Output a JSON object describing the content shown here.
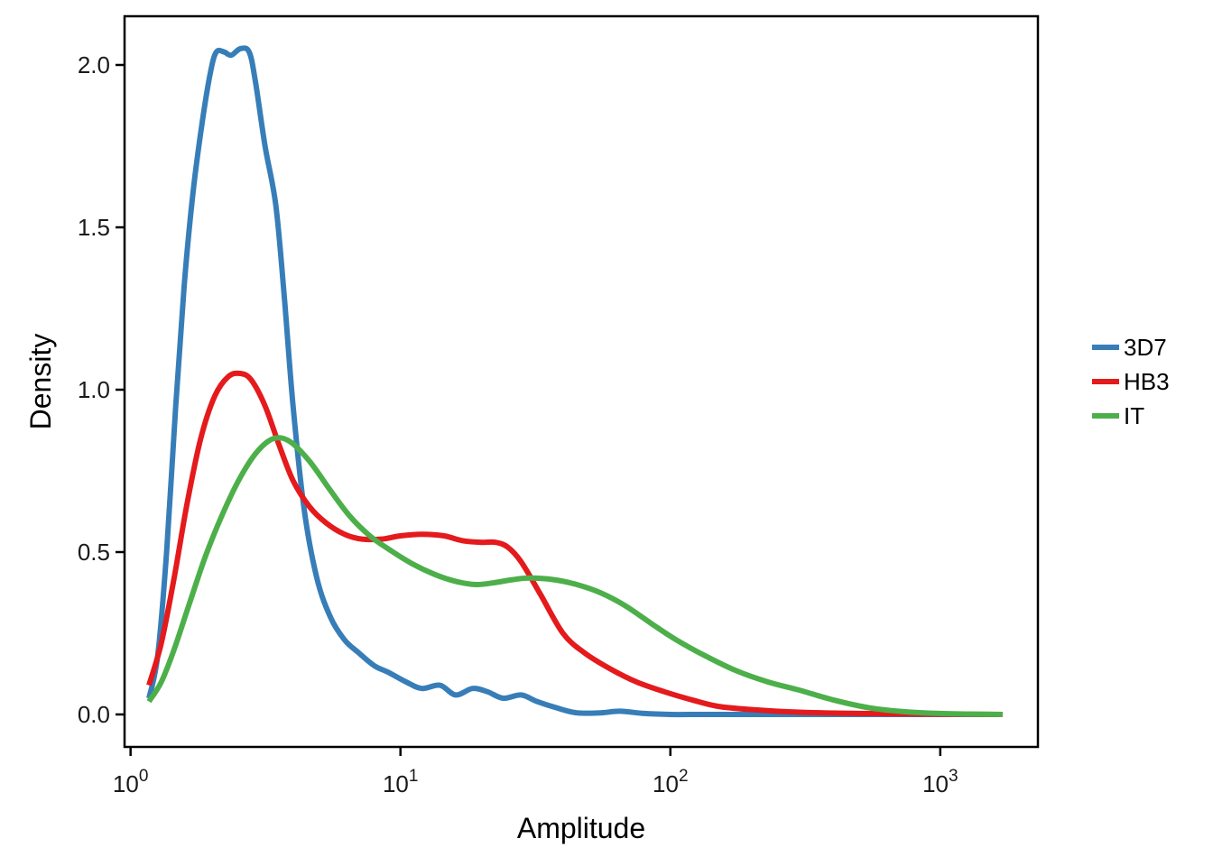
{
  "chart_data": {
    "type": "line",
    "title": "",
    "xlabel": "Amplitude",
    "ylabel": "Density",
    "x_scale": "log10",
    "xlim": [
      0.95,
      2300
    ],
    "ylim": [
      -0.1,
      2.15
    ],
    "x_ticks": [
      {
        "value": 1,
        "base": "10",
        "exp": "0"
      },
      {
        "value": 10,
        "base": "10",
        "exp": "1"
      },
      {
        "value": 100,
        "base": "10",
        "exp": "2"
      },
      {
        "value": 1000,
        "base": "10",
        "exp": "3"
      }
    ],
    "y_ticks": [
      {
        "value": 0.0,
        "label": "0.0"
      },
      {
        "value": 0.5,
        "label": "0.5"
      },
      {
        "value": 1.0,
        "label": "1.0"
      },
      {
        "value": 1.5,
        "label": "1.5"
      },
      {
        "value": 2.0,
        "label": "2.0"
      }
    ],
    "grid": false,
    "legend_position": "right",
    "series": [
      {
        "name": "3D7",
        "color": "#377EB8",
        "points": [
          [
            1.17,
            0.05
          ],
          [
            1.26,
            0.18
          ],
          [
            1.36,
            0.5
          ],
          [
            1.47,
            0.95
          ],
          [
            1.58,
            1.32
          ],
          [
            1.7,
            1.6
          ],
          [
            1.84,
            1.82
          ],
          [
            1.98,
            1.98
          ],
          [
            2.08,
            2.04
          ],
          [
            2.22,
            2.04
          ],
          [
            2.36,
            2.03
          ],
          [
            2.55,
            2.05
          ],
          [
            2.75,
            2.04
          ],
          [
            2.9,
            1.95
          ],
          [
            3.15,
            1.75
          ],
          [
            3.45,
            1.57
          ],
          [
            3.7,
            1.3
          ],
          [
            4.0,
            0.95
          ],
          [
            4.4,
            0.63
          ],
          [
            4.9,
            0.42
          ],
          [
            5.5,
            0.3
          ],
          [
            6.2,
            0.23
          ],
          [
            7.0,
            0.19
          ],
          [
            8.0,
            0.15
          ],
          [
            9.0,
            0.13
          ],
          [
            10.5,
            0.1
          ],
          [
            12.0,
            0.08
          ],
          [
            14.0,
            0.09
          ],
          [
            16.0,
            0.06
          ],
          [
            18.5,
            0.08
          ],
          [
            21.0,
            0.07
          ],
          [
            24.0,
            0.05
          ],
          [
            28.0,
            0.06
          ],
          [
            32.0,
            0.04
          ],
          [
            38.0,
            0.02
          ],
          [
            45.0,
            0.005
          ],
          [
            55.0,
            0.005
          ],
          [
            65.0,
            0.01
          ],
          [
            80.0,
            0.003
          ],
          [
            100,
            0.0
          ],
          [
            130,
            0.0
          ],
          [
            200,
            0.0
          ],
          [
            500,
            0.0
          ],
          [
            1000,
            0.0
          ],
          [
            1700,
            0.0
          ]
        ]
      },
      {
        "name": "HB3",
        "color": "#E41A1C",
        "points": [
          [
            1.17,
            0.09
          ],
          [
            1.3,
            0.22
          ],
          [
            1.45,
            0.42
          ],
          [
            1.62,
            0.65
          ],
          [
            1.82,
            0.85
          ],
          [
            2.05,
            0.98
          ],
          [
            2.3,
            1.04
          ],
          [
            2.55,
            1.05
          ],
          [
            2.8,
            1.03
          ],
          [
            3.15,
            0.95
          ],
          [
            3.55,
            0.83
          ],
          [
            4.0,
            0.72
          ],
          [
            4.6,
            0.64
          ],
          [
            5.3,
            0.59
          ],
          [
            6.2,
            0.555
          ],
          [
            7.2,
            0.54
          ],
          [
            8.5,
            0.54
          ],
          [
            10.0,
            0.55
          ],
          [
            12.0,
            0.555
          ],
          [
            14.5,
            0.55
          ],
          [
            17.0,
            0.535
          ],
          [
            20.0,
            0.53
          ],
          [
            22.5,
            0.53
          ],
          [
            25.0,
            0.515
          ],
          [
            28.0,
            0.47
          ],
          [
            33.0,
            0.37
          ],
          [
            40.0,
            0.25
          ],
          [
            48.0,
            0.19
          ],
          [
            60.0,
            0.14
          ],
          [
            75.0,
            0.1
          ],
          [
            95.0,
            0.07
          ],
          [
            120,
            0.045
          ],
          [
            150,
            0.025
          ],
          [
            200,
            0.015
          ],
          [
            300,
            0.007
          ],
          [
            500,
            0.003
          ],
          [
            1000,
            0.001
          ],
          [
            1700,
            0.0
          ]
        ]
      },
      {
        "name": "IT",
        "color": "#4DAF4A",
        "points": [
          [
            1.17,
            0.04
          ],
          [
            1.3,
            0.1
          ],
          [
            1.45,
            0.2
          ],
          [
            1.65,
            0.34
          ],
          [
            1.9,
            0.49
          ],
          [
            2.2,
            0.62
          ],
          [
            2.55,
            0.73
          ],
          [
            2.95,
            0.81
          ],
          [
            3.4,
            0.85
          ],
          [
            3.9,
            0.84
          ],
          [
            4.6,
            0.78
          ],
          [
            5.5,
            0.69
          ],
          [
            6.5,
            0.61
          ],
          [
            7.7,
            0.55
          ],
          [
            9.0,
            0.51
          ],
          [
            11.0,
            0.465
          ],
          [
            13.5,
            0.43
          ],
          [
            16.0,
            0.41
          ],
          [
            19.0,
            0.4
          ],
          [
            22.0,
            0.405
          ],
          [
            26.0,
            0.415
          ],
          [
            30.0,
            0.42
          ],
          [
            37.0,
            0.415
          ],
          [
            45.0,
            0.4
          ],
          [
            55.0,
            0.375
          ],
          [
            68.0,
            0.335
          ],
          [
            85.0,
            0.28
          ],
          [
            105,
            0.23
          ],
          [
            135,
            0.18
          ],
          [
            175,
            0.135
          ],
          [
            230,
            0.1
          ],
          [
            300,
            0.075
          ],
          [
            400,
            0.045
          ],
          [
            550,
            0.02
          ],
          [
            750,
            0.008
          ],
          [
            1000,
            0.003
          ],
          [
            1300,
            0.001
          ],
          [
            1700,
            0.0
          ]
        ]
      }
    ]
  }
}
